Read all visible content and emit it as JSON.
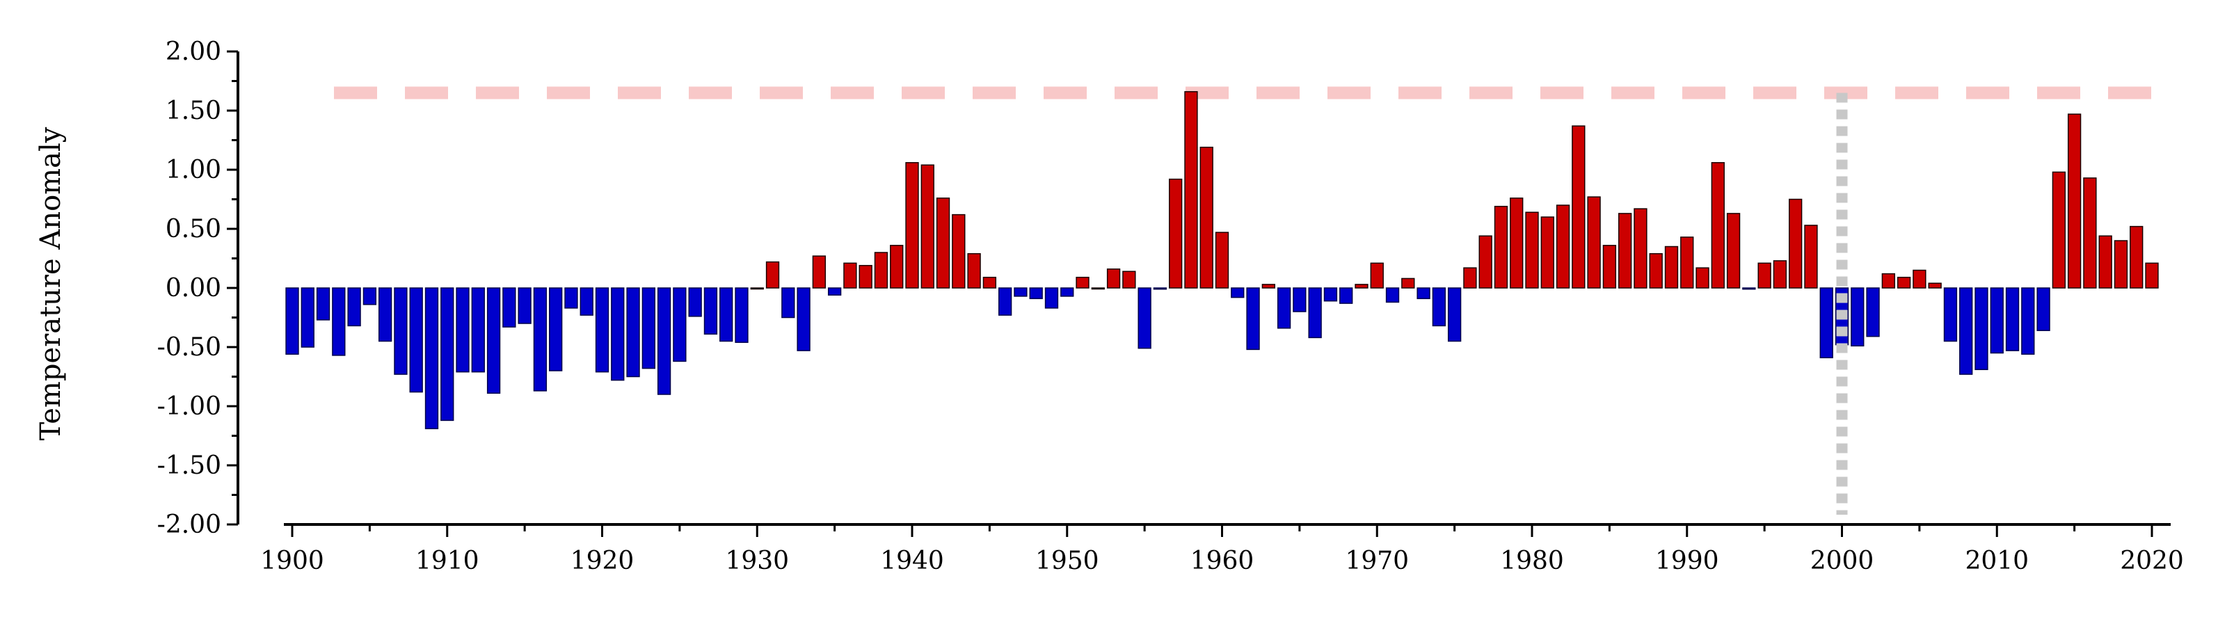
{
  "chart_data": {
    "type": "bar",
    "title": "",
    "xlabel": "",
    "ylabel": "Temperature Anomaly",
    "xlim": [
      1900,
      2020
    ],
    "ylim": [
      -2.0,
      2.0
    ],
    "x_ticks": [
      "1900",
      "1910",
      "1920",
      "1930",
      "1940",
      "1950",
      "1960",
      "1970",
      "1980",
      "1990",
      "2000",
      "2010",
      "2020"
    ],
    "y_ticks": [
      "2.00",
      "1.50",
      "1.00",
      "0.50",
      "0.00",
      "-0.50",
      "-1.00",
      "-1.50",
      "-2.00"
    ],
    "grid": false,
    "legend": "none",
    "colors": {
      "positive": "#cc0000",
      "negative": "#0000cc",
      "threshold_line": "#f8c8c8",
      "marker_line": "#c8c8c8"
    },
    "threshold_line": {
      "y": 1.65,
      "style": "dashed"
    },
    "marker_line": {
      "x": 2000,
      "style": "dotted"
    },
    "years": [
      1900,
      1901,
      1902,
      1903,
      1904,
      1905,
      1906,
      1907,
      1908,
      1909,
      1910,
      1911,
      1912,
      1913,
      1914,
      1915,
      1916,
      1917,
      1918,
      1919,
      1920,
      1921,
      1922,
      1923,
      1924,
      1925,
      1926,
      1927,
      1928,
      1929,
      1930,
      1931,
      1932,
      1933,
      1934,
      1935,
      1936,
      1937,
      1938,
      1939,
      1940,
      1941,
      1942,
      1943,
      1944,
      1945,
      1946,
      1947,
      1948,
      1949,
      1950,
      1951,
      1952,
      1953,
      1954,
      1955,
      1956,
      1957,
      1958,
      1959,
      1960,
      1961,
      1962,
      1963,
      1964,
      1965,
      1966,
      1967,
      1968,
      1969,
      1970,
      1971,
      1972,
      1973,
      1974,
      1975,
      1976,
      1977,
      1978,
      1979,
      1980,
      1981,
      1982,
      1983,
      1984,
      1985,
      1986,
      1987,
      1988,
      1989,
      1990,
      1991,
      1992,
      1993,
      1994,
      1995,
      1996,
      1997,
      1998,
      1999,
      2000,
      2001,
      2002,
      2003,
      2004,
      2005,
      2006,
      2007,
      2008,
      2009,
      2010,
      2011,
      2012,
      2013,
      2014,
      2015,
      2016,
      2017,
      2018,
      2019,
      2020
    ],
    "values": [
      -0.56,
      -0.5,
      -0.27,
      -0.57,
      -0.32,
      -0.14,
      -0.45,
      -0.73,
      -0.88,
      -1.19,
      -1.12,
      -0.71,
      -0.71,
      -0.89,
      -0.33,
      -0.3,
      -0.87,
      -0.7,
      -0.17,
      -0.23,
      -0.71,
      -0.78,
      -0.75,
      -0.68,
      -0.9,
      -0.62,
      -0.24,
      -0.39,
      -0.45,
      -0.46,
      0.0,
      0.22,
      -0.25,
      -0.53,
      0.27,
      -0.06,
      0.21,
      0.19,
      0.3,
      0.36,
      1.06,
      1.04,
      0.76,
      0.62,
      0.29,
      0.09,
      -0.23,
      -0.07,
      -0.09,
      -0.17,
      -0.07,
      0.09,
      0.0,
      0.16,
      0.14,
      -0.51,
      -0.01,
      0.92,
      1.66,
      1.19,
      0.47,
      -0.08,
      -0.52,
      0.03,
      -0.34,
      -0.2,
      -0.42,
      -0.11,
      -0.13,
      0.03,
      0.21,
      -0.12,
      0.08,
      -0.09,
      -0.32,
      -0.45,
      0.17,
      0.44,
      0.69,
      0.76,
      0.64,
      0.6,
      0.7,
      1.37,
      0.77,
      0.36,
      0.63,
      0.67,
      0.29,
      0.35,
      0.43,
      0.17,
      1.06,
      0.63,
      -0.01,
      0.21,
      0.23,
      0.75,
      0.53,
      -0.59,
      -0.48,
      -0.49,
      -0.41,
      0.12,
      0.09,
      0.15,
      0.04,
      -0.45,
      -0.73,
      -0.69,
      -0.55,
      -0.53,
      -0.56,
      -0.36,
      0.98,
      1.47,
      0.93,
      0.44,
      0.4,
      0.52,
      0.21
    ]
  }
}
